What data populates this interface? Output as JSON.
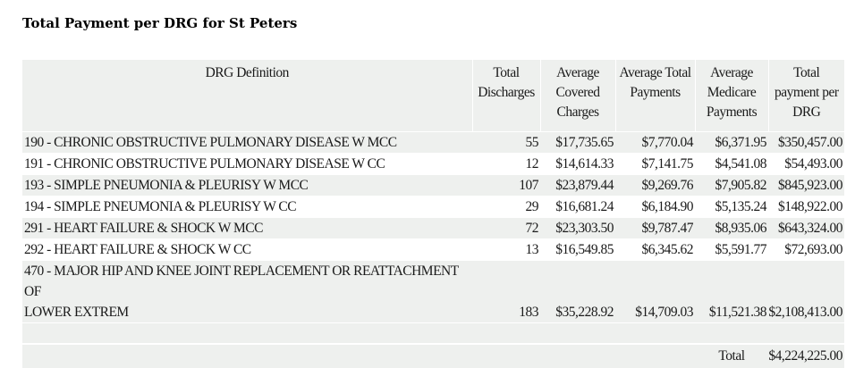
{
  "title": "Total Payment per DRG for St Peters",
  "columns": {
    "definition": "DRG Definition",
    "discharges_1": "Total",
    "discharges_2": "Discharges",
    "covered_1": "Average",
    "covered_2": "Covered",
    "covered_3": "Charges",
    "total_pay_1": "Average Total",
    "total_pay_2": "Payments",
    "medicare_1": "Average",
    "medicare_2": "Medicare",
    "medicare_3": "Payments",
    "per_drg_1": "Total",
    "per_drg_2": "payment per",
    "per_drg_3": "DRG"
  },
  "rows": [
    {
      "definition": "190 - CHRONIC OBSTRUCTIVE PULMONARY DISEASE W MCC",
      "discharges": "55",
      "covered": "$17,735.65",
      "total_payments": "$7,770.04",
      "medicare": "$6,371.95",
      "per_drg": "$350,457.00"
    },
    {
      "definition": "191 - CHRONIC OBSTRUCTIVE PULMONARY DISEASE W CC",
      "discharges": "12",
      "covered": "$14,614.33",
      "total_payments": "$7,141.75",
      "medicare": "$4,541.08",
      "per_drg": "$54,493.00"
    },
    {
      "definition": "193 - SIMPLE PNEUMONIA & PLEURISY W MCC",
      "discharges": "107",
      "covered": "$23,879.44",
      "total_payments": "$9,269.76",
      "medicare": "$7,905.82",
      "per_drg": "$845,923.00"
    },
    {
      "definition": "194 - SIMPLE PNEUMONIA & PLEURISY W CC",
      "discharges": "29",
      "covered": "$16,681.24",
      "total_payments": "$6,184.90",
      "medicare": "$5,135.24",
      "per_drg": "$148,922.00"
    },
    {
      "definition": "291 - HEART FAILURE & SHOCK W MCC",
      "discharges": "72",
      "covered": "$23,303.50",
      "total_payments": "$9,787.47",
      "medicare": "$8,935.06",
      "per_drg": "$643,324.00"
    },
    {
      "definition": "292 - HEART FAILURE & SHOCK W CC",
      "discharges": "13",
      "covered": "$16,549.85",
      "total_payments": "$6,345.62",
      "medicare": "$5,591.77",
      "per_drg": "$72,693.00"
    },
    {
      "definition_line1": "470 - MAJOR HIP AND KNEE JOINT REPLACEMENT OR REATTACHMENT OF",
      "definition_line2": "LOWER EXTREM",
      "discharges": "183",
      "covered": "$35,228.92",
      "total_payments": "$14,709.03",
      "medicare": "$11,521.38",
      "per_drg": "$2,108,413.00"
    }
  ],
  "total": {
    "label": "Total",
    "value": "$4,224,225.00"
  },
  "colors": {
    "shade": "#eef0ee",
    "text": "#1a1a1a"
  }
}
